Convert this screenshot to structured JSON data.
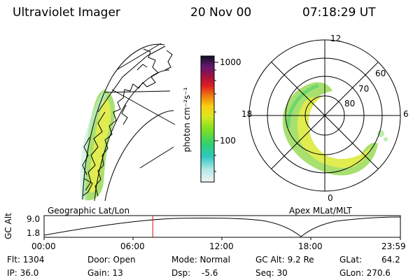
{
  "header": {
    "instrument": "Ultraviolet Imager",
    "date": "20 Nov 00",
    "time": "07:18:29 UT"
  },
  "colorbar": {
    "unit_label": "photon cm⁻²s⁻¹",
    "ticks": [
      "1000",
      "100"
    ]
  },
  "polar_plot": {
    "mlt_labels": [
      "12",
      "18",
      "6",
      "0"
    ],
    "lat_labels": [
      "60",
      "70",
      "80"
    ]
  },
  "orbit_panel": {
    "left_label": "Geographic Lat/Lon",
    "right_label": "Apex MLat/MLT",
    "axis_label": "GC Alt",
    "y_ticks": [
      "9.0",
      "1.8"
    ],
    "x_ticks": [
      "00:00",
      "06:00",
      "12:00",
      "18:00",
      "23:59"
    ],
    "current_time_fraction": 0.305
  },
  "status": {
    "flt": "Flt: 1304",
    "ip": "IP: 36.0",
    "door": "Door: Open",
    "gain": "Gain: 13",
    "mode": "Mode: Normal",
    "dsp": "Dsp:",
    "dsp_value": "-5.6",
    "gc_alt": "GC Alt: 9.2 Re",
    "seq": "Seq: 30",
    "glat": "GLat:",
    "glat_value": "64.2",
    "glon": "GLon: 270.6"
  },
  "colors": {
    "cursor": "#d01010",
    "aurora_low": "#9be07a",
    "aurora_high": "#f0e040"
  }
}
